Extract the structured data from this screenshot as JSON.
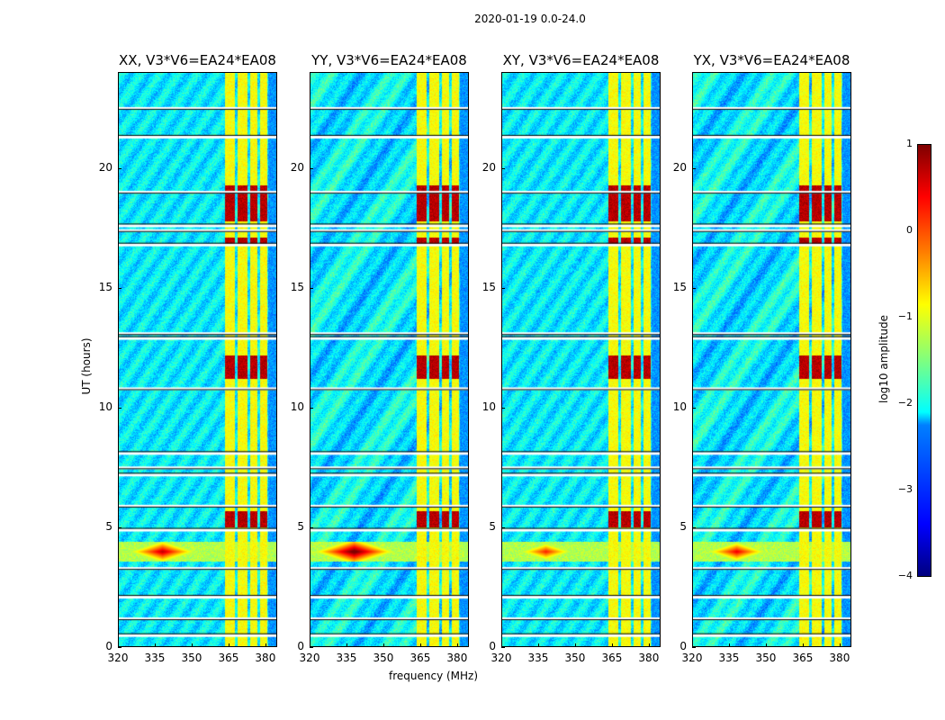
{
  "chart_data": {
    "type": "heatmap",
    "title": "2020-01-19 0.0-24.0",
    "xlabel": "frequency (MHz)",
    "ylabel": "UT (hours)",
    "xlim": [
      320,
      384.8
    ],
    "ylim": [
      0,
      24
    ],
    "xticks": [
      "320",
      "335",
      "350",
      "365",
      "380"
    ],
    "xtick_values": [
      320,
      335,
      350,
      365,
      380
    ],
    "yticks": [
      "0",
      "5",
      "10",
      "15",
      "20"
    ],
    "ytick_values": [
      0,
      5,
      10,
      15,
      20
    ],
    "panels": [
      {
        "title": "XX, V3*V6=EA24*EA08",
        "rfi_strength": 1.0
      },
      {
        "title": "YY, V3*V6=EA24*EA08",
        "rfi_strength": 1.1
      },
      {
        "title": "XY, V3*V6=EA24*EA08",
        "rfi_strength": 0.9
      },
      {
        "title": "YX, V3*V6=EA24*EA08",
        "rfi_strength": 0.95
      }
    ],
    "bright_bands_mhz": [
      [
        363.5,
        367.5
      ],
      [
        368.5,
        372.5
      ],
      [
        373.5,
        376.5
      ],
      [
        377.5,
        380.5
      ]
    ],
    "strong_time_ranges_hours": [
      [
        17.8,
        19.3
      ],
      [
        5.0,
        5.7
      ],
      [
        16.8,
        17.1
      ],
      [
        11.2,
        12.2
      ]
    ],
    "rfi_burst": {
      "hours": [
        3.6,
        4.4
      ],
      "center_mhz": 338
    },
    "flagged_rows_hours": [
      0.5,
      1.2,
      2.1,
      3.3,
      4.9,
      5.9,
      7.2,
      7.5,
      8.1,
      10.8,
      12.9,
      13.1,
      16.8,
      17.4,
      17.6,
      19.0,
      21.3,
      22.5
    ],
    "colorbar": {
      "label": "log10 amplitude",
      "range": [
        -4,
        1
      ],
      "ticks": [
        "1",
        "0",
        "−1",
        "−2",
        "−3",
        "−4"
      ],
      "tick_values": [
        1,
        0,
        -1,
        -2,
        -3,
        -4
      ],
      "colormap": "jet"
    }
  }
}
